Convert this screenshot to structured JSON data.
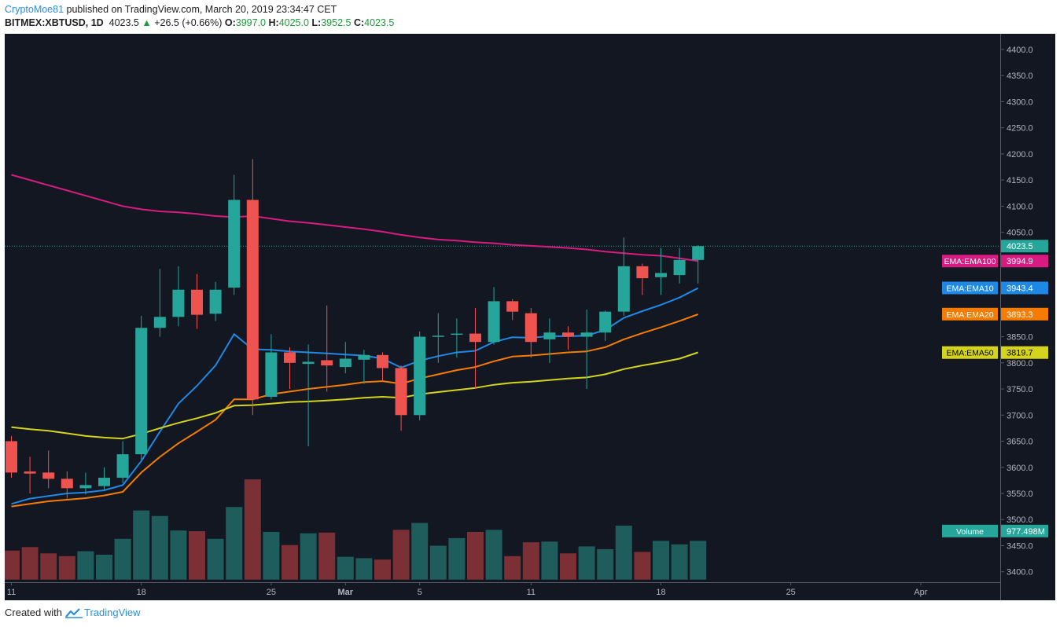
{
  "header": {
    "author": "CryptoMoe81",
    "published": "published on TradingView.com, March 20, 2019 23:34:47 CET",
    "symbol": "BITMEX:XBTUSD, 1D",
    "last": "4023.5",
    "change": "+26.5 (+0.66%)",
    "o_label": "O:",
    "o_value": "3997.0",
    "h_label": "H:",
    "h_value": "4025.0",
    "l_label": "L:",
    "l_value": "3952.5",
    "c_label": "C:",
    "c_value": "4023.5"
  },
  "footer": {
    "created_with": "Created with",
    "brand": "TradingView"
  },
  "colors": {
    "background": "#131722",
    "up": "#26a69a",
    "down": "#ef5350",
    "ema100": "#d81b80",
    "ema10": "#1e88e5",
    "ema20": "#f57c00",
    "ema50": "#d4d41c",
    "volume_up": "#1f5d5d",
    "volume_down": "#7a3035",
    "axis_text": "#b2b5be"
  },
  "chart_data": {
    "type": "candlestick",
    "ylim": [
      3380,
      4430
    ],
    "y_ticks": [
      3400,
      3450,
      3500,
      3550,
      3600,
      3650,
      3700,
      3750,
      3800,
      3850,
      3900,
      3950,
      4000,
      4050,
      4100,
      4150,
      4200,
      4250,
      4300,
      4350,
      4400
    ],
    "x_ticks": [
      {
        "label": "11",
        "date": "2019-02-11"
      },
      {
        "label": "18",
        "date": "2019-02-18"
      },
      {
        "label": "25",
        "date": "2019-02-25"
      },
      {
        "label": "Mar",
        "date": "2019-03-01"
      },
      {
        "label": "5",
        "date": "2019-03-05"
      },
      {
        "label": "11",
        "date": "2019-03-11"
      },
      {
        "label": "18",
        "date": "2019-03-18"
      },
      {
        "label": "25",
        "date": "2019-03-25"
      },
      {
        "label": "Apr",
        "date": "2019-04-01"
      }
    ],
    "candles": [
      {
        "date": "2019-02-11",
        "o": 3650,
        "h": 3660,
        "l": 3580,
        "c": 3590
      },
      {
        "date": "2019-02-12",
        "o": 3592,
        "h": 3620,
        "l": 3550,
        "c": 3588
      },
      {
        "date": "2019-02-13",
        "o": 3590,
        "h": 3632,
        "l": 3560,
        "c": 3578
      },
      {
        "date": "2019-02-14",
        "o": 3578,
        "h": 3592,
        "l": 3540,
        "c": 3560
      },
      {
        "date": "2019-02-15",
        "o": 3560,
        "h": 3590,
        "l": 3548,
        "c": 3566
      },
      {
        "date": "2019-02-16",
        "o": 3564,
        "h": 3600,
        "l": 3555,
        "c": 3580
      },
      {
        "date": "2019-02-17",
        "o": 3580,
        "h": 3650,
        "l": 3570,
        "c": 3625
      },
      {
        "date": "2019-02-18",
        "o": 3625,
        "h": 3890,
        "l": 3615,
        "c": 3867
      },
      {
        "date": "2019-02-19",
        "o": 3867,
        "h": 3980,
        "l": 3850,
        "c": 3888
      },
      {
        "date": "2019-02-20",
        "o": 3888,
        "h": 3985,
        "l": 3870,
        "c": 3940
      },
      {
        "date": "2019-02-21",
        "o": 3940,
        "h": 3970,
        "l": 3865,
        "c": 3892
      },
      {
        "date": "2019-02-22",
        "o": 3894,
        "h": 3955,
        "l": 3880,
        "c": 3940
      },
      {
        "date": "2019-02-23",
        "o": 3944,
        "h": 4160,
        "l": 3930,
        "c": 4112
      },
      {
        "date": "2019-02-24",
        "o": 4112,
        "h": 4190,
        "l": 3700,
        "c": 3730
      },
      {
        "date": "2019-02-25",
        "o": 3735,
        "h": 3855,
        "l": 3730,
        "c": 3820
      },
      {
        "date": "2019-02-26",
        "o": 3820,
        "h": 3830,
        "l": 3750,
        "c": 3800
      },
      {
        "date": "2019-02-27",
        "o": 3798,
        "h": 3835,
        "l": 3640,
        "c": 3802
      },
      {
        "date": "2019-02-28",
        "o": 3805,
        "h": 3910,
        "l": 3745,
        "c": 3795
      },
      {
        "date": "2019-03-01",
        "o": 3792,
        "h": 3840,
        "l": 3780,
        "c": 3808
      },
      {
        "date": "2019-03-02",
        "o": 3806,
        "h": 3825,
        "l": 3760,
        "c": 3815
      },
      {
        "date": "2019-03-03",
        "o": 3815,
        "h": 3820,
        "l": 3765,
        "c": 3790
      },
      {
        "date": "2019-03-04",
        "o": 3790,
        "h": 3795,
        "l": 3670,
        "c": 3700
      },
      {
        "date": "2019-03-05",
        "o": 3700,
        "h": 3860,
        "l": 3690,
        "c": 3850
      },
      {
        "date": "2019-03-06",
        "o": 3850,
        "h": 3895,
        "l": 3800,
        "c": 3852
      },
      {
        "date": "2019-03-07",
        "o": 3855,
        "h": 3885,
        "l": 3810,
        "c": 3856
      },
      {
        "date": "2019-03-08",
        "o": 3856,
        "h": 3905,
        "l": 3750,
        "c": 3840
      },
      {
        "date": "2019-03-09",
        "o": 3840,
        "h": 3945,
        "l": 3835,
        "c": 3918
      },
      {
        "date": "2019-03-10",
        "o": 3918,
        "h": 3922,
        "l": 3882,
        "c": 3898
      },
      {
        "date": "2019-03-11",
        "o": 3895,
        "h": 3905,
        "l": 3810,
        "c": 3840
      },
      {
        "date": "2019-03-12",
        "o": 3845,
        "h": 3885,
        "l": 3800,
        "c": 3858
      },
      {
        "date": "2019-03-13",
        "o": 3858,
        "h": 3870,
        "l": 3825,
        "c": 3850
      },
      {
        "date": "2019-03-14",
        "o": 3850,
        "h": 3902,
        "l": 3750,
        "c": 3858
      },
      {
        "date": "2019-03-15",
        "o": 3858,
        "h": 3900,
        "l": 3842,
        "c": 3898
      },
      {
        "date": "2019-03-16",
        "o": 3898,
        "h": 4040,
        "l": 3890,
        "c": 3985
      },
      {
        "date": "2019-03-17",
        "o": 3985,
        "h": 3990,
        "l": 3930,
        "c": 3962
      },
      {
        "date": "2019-03-18",
        "o": 3964,
        "h": 4020,
        "l": 3930,
        "c": 3972
      },
      {
        "date": "2019-03-19",
        "o": 3968,
        "h": 4020,
        "l": 3952,
        "c": 3997
      },
      {
        "date": "2019-03-20",
        "o": 3997,
        "h": 4025,
        "l": 3952,
        "c": 4023.5
      }
    ],
    "series": [
      {
        "name": "EMA:EMA100",
        "label_value": "3994.9",
        "values": [
          4160,
          4150,
          4140,
          4130,
          4120,
          4110,
          4100,
          4094,
          4090,
          4088,
          4085,
          4081,
          4079,
          4081,
          4076,
          4071,
          4068,
          4064,
          4060,
          4056,
          4051,
          4045,
          4040,
          4036,
          4034,
          4031,
          4029,
          4026,
          4024,
          4022,
          4020,
          4017,
          4013,
          4010,
          4007,
          4005,
          4000,
          3995
        ]
      },
      {
        "name": "EMA:EMA10",
        "label_value": "3943.4",
        "values": [
          3530,
          3540,
          3545,
          3550,
          3552,
          3556,
          3566,
          3612,
          3668,
          3722,
          3756,
          3795,
          3855,
          3826,
          3825,
          3822,
          3820,
          3818,
          3816,
          3814,
          3808,
          3791,
          3804,
          3813,
          3820,
          3823,
          3840,
          3849,
          3848,
          3851,
          3851,
          3852,
          3863,
          3886,
          3899,
          3911,
          3925,
          3943
        ]
      },
      {
        "name": "EMA:EMA20",
        "label_value": "3893.3",
        "values": [
          3525,
          3530,
          3535,
          3538,
          3541,
          3546,
          3553,
          3590,
          3620,
          3646,
          3668,
          3691,
          3730,
          3730,
          3740,
          3745,
          3750,
          3754,
          3758,
          3763,
          3765,
          3760,
          3770,
          3778,
          3786,
          3792,
          3803,
          3812,
          3814,
          3817,
          3820,
          3822,
          3830,
          3845,
          3857,
          3868,
          3880,
          3893
        ]
      },
      {
        "name": "EMA:EMA50",
        "label_value": "3819.7",
        "values": [
          3677,
          3673,
          3670,
          3665,
          3660,
          3657,
          3655,
          3664,
          3675,
          3685,
          3694,
          3704,
          3718,
          3719,
          3722,
          3725,
          3726,
          3728,
          3730,
          3733,
          3735,
          3733,
          3740,
          3744,
          3748,
          3752,
          3758,
          3762,
          3764,
          3767,
          3770,
          3772,
          3778,
          3788,
          3795,
          3801,
          3808,
          3820
        ]
      }
    ],
    "last_price_label": "4023.5",
    "volume_label": "Volume",
    "volume_value": "977.498M",
    "volume": [
      {
        "v": 0.42,
        "down": true
      },
      {
        "v": 0.47,
        "down": true
      },
      {
        "v": 0.38,
        "down": true
      },
      {
        "v": 0.34,
        "down": true
      },
      {
        "v": 0.41,
        "down": false
      },
      {
        "v": 0.36,
        "down": false
      },
      {
        "v": 0.59,
        "down": false
      },
      {
        "v": 1.0,
        "down": false
      },
      {
        "v": 0.92,
        "down": false
      },
      {
        "v": 0.71,
        "down": false
      },
      {
        "v": 0.7,
        "down": true
      },
      {
        "v": 0.59,
        "down": false
      },
      {
        "v": 1.05,
        "down": false
      },
      {
        "v": 1.45,
        "down": true
      },
      {
        "v": 0.69,
        "down": false
      },
      {
        "v": 0.5,
        "down": true
      },
      {
        "v": 0.67,
        "down": false
      },
      {
        "v": 0.68,
        "down": true
      },
      {
        "v": 0.33,
        "down": false
      },
      {
        "v": 0.31,
        "down": false
      },
      {
        "v": 0.29,
        "down": true
      },
      {
        "v": 0.72,
        "down": true
      },
      {
        "v": 0.82,
        "down": false
      },
      {
        "v": 0.49,
        "down": false
      },
      {
        "v": 0.6,
        "down": false
      },
      {
        "v": 0.69,
        "down": true
      },
      {
        "v": 0.72,
        "down": false
      },
      {
        "v": 0.34,
        "down": true
      },
      {
        "v": 0.54,
        "down": true
      },
      {
        "v": 0.55,
        "down": false
      },
      {
        "v": 0.38,
        "down": true
      },
      {
        "v": 0.48,
        "down": false
      },
      {
        "v": 0.44,
        "down": false
      },
      {
        "v": 0.78,
        "down": false
      },
      {
        "v": 0.4,
        "down": true
      },
      {
        "v": 0.56,
        "down": false
      },
      {
        "v": 0.51,
        "down": false
      },
      {
        "v": 0.56,
        "down": false
      }
    ]
  }
}
